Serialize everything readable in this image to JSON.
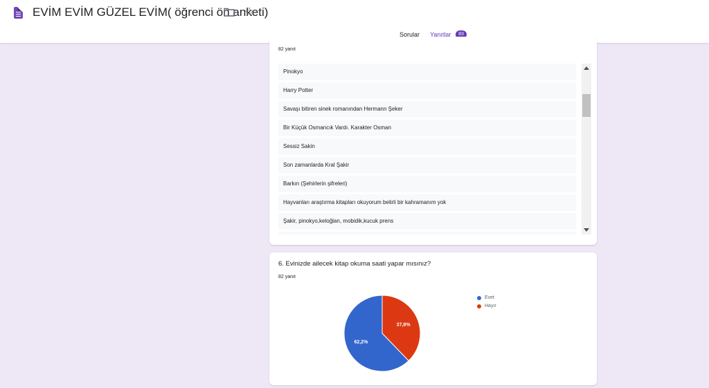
{
  "header": {
    "title": "EVİM EVİM GÜZEL EVİM( öğrenci ön anketi)",
    "app_icon": "google-forms-icon",
    "folder_icon": "folder-icon",
    "star_icon": "star-icon",
    "tabs": [
      {
        "label": "Sorular"
      },
      {
        "label": "Yanıtlar",
        "badge": "83"
      }
    ]
  },
  "card1": {
    "response_count": "82 yanıt",
    "answers": [
      "Pinokyo",
      "Harry Potter",
      "Savaşı bitiren sinek romanından Hermann Şeker",
      "Bir Küçük Osmancık Vardı. Karakter Osman",
      "Sessiz Sakin",
      "Son zamanlarda Kral Şakir",
      "Barkın (Şehirlerin şifreleri)",
      "Hayvanları araştırma kitapları okuyorum belirli bir kahramanım yok",
      "Şakir, pinokyo,keloğlan, mobidik,kucuk prens"
    ]
  },
  "card2": {
    "question": "6. Evinizde ailecek kitap okuma saati yapar mısınız?",
    "response_count": "82 yanıt"
  },
  "chart_data": {
    "type": "pie",
    "slices": [
      {
        "name": "Evet",
        "value": 62.2,
        "label": "62,2%",
        "color": "#3366cc"
      },
      {
        "name": "Hayır",
        "value": 37.8,
        "label": "37,8%",
        "color": "#dc3912"
      }
    ],
    "legend_position": "right"
  },
  "colors": {
    "accent": "#673ab7",
    "background": "#ede7f6"
  }
}
